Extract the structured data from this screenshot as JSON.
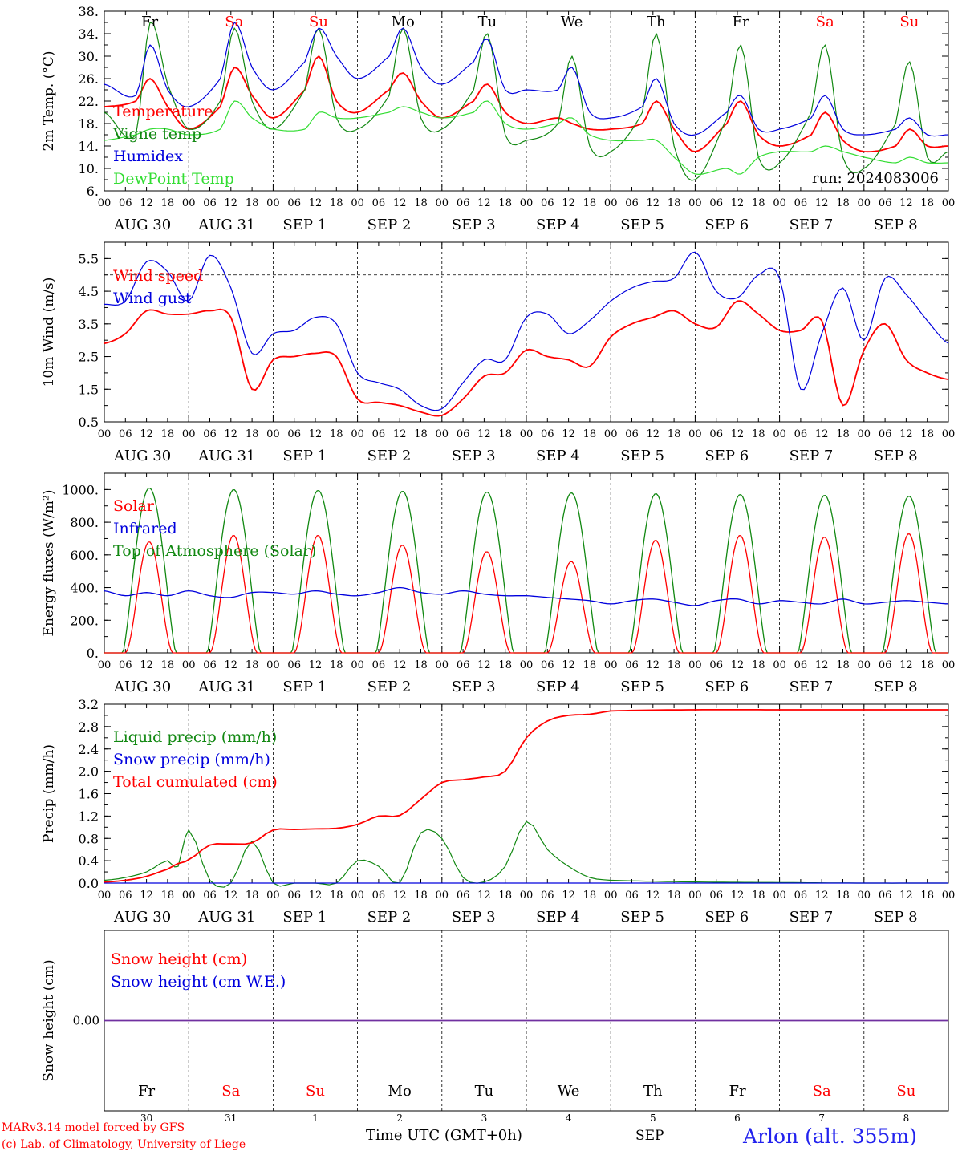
{
  "run_label": "run: 2024083006",
  "footer": {
    "model": "MARv3.14 model forced by GFS",
    "lab": "(c) Lab. of Climatology, University of Liege",
    "time_label": "Time UTC (GMT+0h)",
    "month": "SEP",
    "station": "Arlon (alt. 355m)"
  },
  "days": [
    {
      "abbr": "Fr",
      "date": "AUG 30",
      "num": "30",
      "weekend": false
    },
    {
      "abbr": "Sa",
      "date": "AUG 31",
      "num": "31",
      "weekend": true
    },
    {
      "abbr": "Su",
      "date": "SEP  1",
      "num": "1",
      "weekend": true
    },
    {
      "abbr": "Mo",
      "date": "SEP  2",
      "num": "2",
      "weekend": false
    },
    {
      "abbr": "Tu",
      "date": "SEP  3",
      "num": "3",
      "weekend": false
    },
    {
      "abbr": "We",
      "date": "SEP  4",
      "num": "4",
      "weekend": false
    },
    {
      "abbr": "Th",
      "date": "SEP  5",
      "num": "5",
      "weekend": false
    },
    {
      "abbr": "Fr",
      "date": "SEP  6",
      "num": "6",
      "weekend": false
    },
    {
      "abbr": "Sa",
      "date": "SEP  7",
      "num": "7",
      "weekend": true
    },
    {
      "abbr": "Su",
      "date": "SEP  8",
      "num": "8",
      "weekend": true
    }
  ],
  "hour_ticks": [
    "00",
    "06",
    "12",
    "18"
  ],
  "colors": {
    "red": "#ff0000",
    "blue": "#0000dd",
    "green": "#118811",
    "lightgreen": "#33dd33",
    "purple": "#7030a0",
    "weekend": "#ff0000"
  },
  "chart_data": [
    {
      "type": "line",
      "ylabel": "2m Temp. (°C)",
      "ylim": [
        6,
        38
      ],
      "yticks": [
        "6.",
        "10.",
        "14.",
        "18.",
        "22.",
        "26.",
        "30.",
        "34.",
        "38."
      ],
      "x_hours": [
        0,
        9,
        13,
        18,
        24,
        33,
        37,
        42,
        48,
        57,
        61,
        66,
        72,
        81,
        85,
        90,
        96,
        105,
        109,
        114,
        120,
        129,
        133,
        138,
        144,
        153,
        157,
        162,
        168,
        177,
        181,
        186,
        192,
        201,
        205,
        210,
        216,
        225,
        229,
        234,
        240
      ],
      "series": [
        {
          "name": "Temperature",
          "color": "red",
          "values": [
            21,
            22,
            26,
            21,
            17,
            21,
            28,
            23,
            19,
            24,
            30,
            22,
            20,
            24,
            27,
            22,
            19,
            22,
            25,
            20,
            18,
            19,
            18,
            17,
            17,
            18,
            22,
            17,
            13,
            18,
            22,
            16,
            14,
            16,
            20,
            15,
            13,
            14,
            17,
            14,
            14
          ]
        },
        {
          "name": "Vigne temp",
          "color": "green",
          "values": [
            20,
            16,
            36,
            25,
            17,
            22,
            35,
            22,
            17,
            24,
            35,
            19,
            17,
            23,
            35,
            19,
            17,
            24,
            34,
            16,
            15,
            18,
            30,
            14,
            13,
            20,
            34,
            14,
            8,
            19,
            32,
            12,
            11,
            20,
            32,
            12,
            10,
            18,
            29,
            12,
            13
          ]
        },
        {
          "name": "Humidex",
          "color": "blue",
          "values": [
            25,
            23,
            32,
            24,
            21,
            26,
            36,
            28,
            24,
            29,
            35,
            30,
            26,
            30,
            35,
            28,
            25,
            29,
            33,
            24,
            24,
            24,
            28,
            20,
            19,
            21,
            26,
            18,
            16,
            20,
            23,
            17,
            17,
            19,
            23,
            17,
            16,
            17,
            19,
            16,
            16
          ]
        },
        {
          "name": "DewPoint Temp",
          "color": "lightgreen",
          "values": [
            15,
            16,
            17,
            17,
            16,
            17,
            22,
            19,
            17,
            17,
            20,
            19,
            19,
            20,
            21,
            20,
            19,
            20,
            22,
            18,
            17,
            18,
            19,
            16,
            15,
            15,
            15,
            12,
            9,
            10,
            9,
            12,
            13,
            13,
            14,
            13,
            12,
            11,
            12,
            11,
            11
          ]
        }
      ]
    },
    {
      "type": "line",
      "ylabel": "10m Wind (m/s)",
      "ylim": [
        0.5,
        6.0
      ],
      "yticks": [
        "0.5",
        "1.5",
        "2.5",
        "3.5",
        "4.5",
        "5.5"
      ],
      "threshold": 5.0,
      "x_hours": [
        0,
        6,
        12,
        18,
        24,
        30,
        36,
        42,
        48,
        54,
        60,
        66,
        72,
        78,
        84,
        90,
        96,
        102,
        108,
        114,
        120,
        126,
        132,
        138,
        144,
        150,
        156,
        162,
        168,
        174,
        180,
        186,
        192,
        198,
        204,
        210,
        216,
        222,
        228,
        234,
        240
      ],
      "series": [
        {
          "name": "Wind speed",
          "color": "red",
          "values": [
            2.9,
            3.2,
            3.9,
            3.8,
            3.8,
            3.9,
            3.7,
            1.5,
            2.4,
            2.5,
            2.6,
            2.5,
            1.2,
            1.1,
            1.0,
            0.8,
            0.7,
            1.2,
            1.9,
            2.0,
            2.7,
            2.5,
            2.4,
            2.2,
            3.1,
            3.5,
            3.7,
            3.9,
            3.5,
            3.4,
            4.2,
            3.8,
            3.3,
            3.3,
            3.6,
            1.0,
            2.7,
            3.5,
            2.4,
            2.0,
            1.8
          ]
        },
        {
          "name": "Wind gust",
          "color": "blue",
          "values": [
            4.1,
            4.2,
            5.4,
            5.1,
            4.2,
            5.6,
            4.6,
            2.6,
            3.2,
            3.3,
            3.7,
            3.5,
            2.0,
            1.7,
            1.5,
            1.0,
            0.9,
            1.7,
            2.4,
            2.4,
            3.7,
            3.8,
            3.2,
            3.6,
            4.2,
            4.6,
            4.8,
            4.9,
            5.7,
            4.5,
            4.3,
            5.0,
            4.9,
            1.5,
            3.2,
            4.6,
            3.0,
            4.9,
            4.4,
            3.6,
            2.9
          ]
        }
      ]
    },
    {
      "type": "line",
      "ylabel": "Energy fluxes (W/m²)",
      "ylim": [
        0,
        1100
      ],
      "yticks": [
        "0.",
        "200.",
        "400.",
        "600.",
        "800.",
        "1000."
      ],
      "series": [
        {
          "name": "Solar",
          "color": "red",
          "peaks": [
            680,
            720,
            720,
            660,
            620,
            560,
            690,
            720,
            710,
            730
          ]
        },
        {
          "name": "Infrared",
          "color": "blue",
          "values": [
            380,
            350,
            370,
            350,
            380,
            350,
            340,
            370,
            370,
            360,
            380,
            360,
            350,
            370,
            400,
            370,
            360,
            380,
            360,
            350,
            350,
            340,
            330,
            320,
            300,
            320,
            330,
            310,
            290,
            320,
            330,
            300,
            320,
            310,
            300,
            330,
            300,
            310,
            320,
            310,
            300
          ]
        },
        {
          "name": "Top of Atmosphere (Solar)",
          "color": "green",
          "peaks": [
            1010,
            1000,
            995,
            990,
            985,
            980,
            975,
            970,
            965,
            960
          ]
        }
      ]
    },
    {
      "type": "line",
      "ylabel": "Precip (mm/h)",
      "ylim": [
        0,
        3.2
      ],
      "yticks": [
        "0.0",
        "0.4",
        "0.8",
        "1.2",
        "1.6",
        "2.0",
        "2.4",
        "2.8",
        "3.2"
      ],
      "x_hours": [
        0,
        6,
        12,
        18,
        21,
        24,
        30,
        36,
        42,
        48,
        54,
        60,
        66,
        72,
        78,
        84,
        90,
        96,
        102,
        108,
        114,
        120,
        126,
        132,
        138,
        144,
        168,
        192,
        216,
        240
      ],
      "series": [
        {
          "name": "Liquid precip (mm/h)",
          "color": "green",
          "values": [
            0.05,
            0.1,
            0.2,
            0.4,
            0.3,
            0.95,
            0.05,
            0.0,
            0.75,
            0.0,
            0.0,
            0.0,
            0.0,
            0.4,
            0.3,
            0.0,
            0.9,
            0.8,
            0.1,
            0.02,
            0.3,
            1.1,
            0.6,
            0.3,
            0.1,
            0.05,
            0.02,
            0.01,
            0.0,
            0.0
          ]
        },
        {
          "name": "Snow precip (mm/h)",
          "color": "blue",
          "values": [
            0,
            0,
            0,
            0,
            0,
            0,
            0,
            0,
            0,
            0,
            0,
            0,
            0,
            0,
            0,
            0,
            0,
            0,
            0,
            0,
            0,
            0,
            0,
            0,
            0,
            0,
            0,
            0,
            0,
            0
          ]
        },
        {
          "name": "Total cumulated (cm)",
          "color": "red",
          "values": [
            0.02,
            0.05,
            0.12,
            0.25,
            0.35,
            0.42,
            0.68,
            0.7,
            0.72,
            0.95,
            0.96,
            0.97,
            0.98,
            1.05,
            1.2,
            1.21,
            1.5,
            1.8,
            1.85,
            1.9,
            2.0,
            2.6,
            2.9,
            3.0,
            3.02,
            3.08,
            3.1,
            3.1,
            3.1,
            3.1
          ]
        }
      ]
    },
    {
      "type": "line",
      "ylabel": "Snow height (cm)",
      "ylim": [
        -1,
        1
      ],
      "yticks": [
        "0.00"
      ],
      "series": [
        {
          "name": "Snow height (cm)",
          "color": "red",
          "values": [
            0,
            0
          ]
        },
        {
          "name": "Snow height (cm W.E.)",
          "color": "blue",
          "values": [
            0,
            0
          ]
        }
      ]
    }
  ]
}
